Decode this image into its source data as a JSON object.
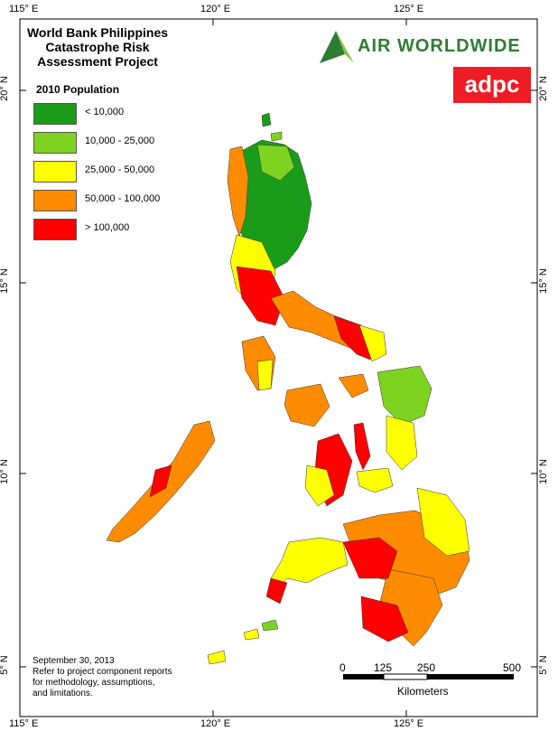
{
  "title": {
    "line1": "World Bank Philippines",
    "line2": "Catastrophe Risk",
    "line3": "Assessment Project"
  },
  "legend": {
    "heading": "2010 Population",
    "classes": [
      {
        "label": "< 10,000",
        "color": "#1a9c1a"
      },
      {
        "label": "10,000 - 25,000",
        "color": "#7ed321"
      },
      {
        "label": "25,000 - 50,000",
        "color": "#ffff00"
      },
      {
        "label": "50,000 - 100,000",
        "color": "#ff8c00"
      },
      {
        "label": "> 100,000",
        "color": "#ff0000"
      }
    ]
  },
  "logos": {
    "air": "AIR WORLDWIDE",
    "air_color": "#2f7d32",
    "adpc": "adpc",
    "adpc_color": "#ee1c25"
  },
  "axes": {
    "top": [
      "115° E",
      "120° E",
      "125° E"
    ],
    "bottom": [
      "115° E",
      "120° E",
      "125° E"
    ],
    "left": [
      "20° N",
      "15° N",
      "10° N",
      "5° N"
    ],
    "right": [
      "20° N",
      "15° N",
      "10° N",
      "5° N"
    ]
  },
  "footnote": {
    "date": "September 30, 2013",
    "line1": "Refer to project component reports",
    "line2": "for methodology, assumptions,",
    "line3": "and limitations."
  },
  "scale_bar": {
    "ticks": [
      "0",
      "125",
      "250",
      "500"
    ],
    "unit": "Kilometers"
  }
}
